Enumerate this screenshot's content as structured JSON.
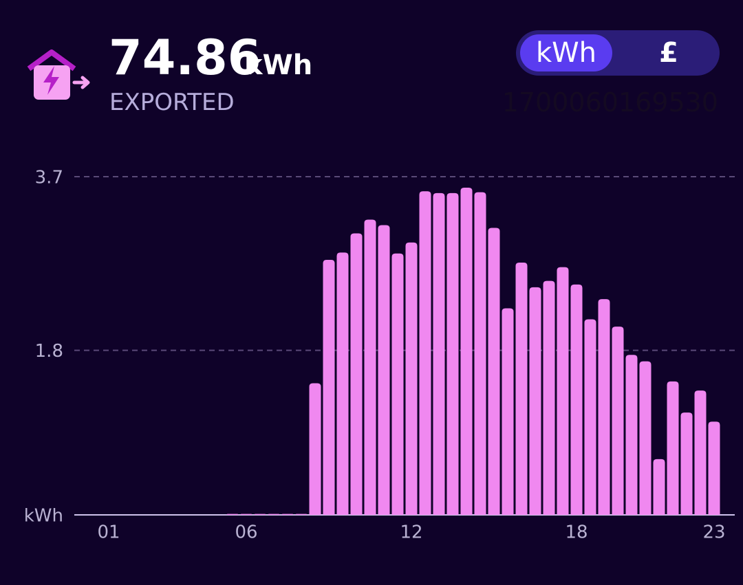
{
  "header": {
    "total": "74.86",
    "unit": "kWh",
    "label": "EXPORTED"
  },
  "toggle": {
    "options": [
      "kWh",
      "£"
    ],
    "active": 0
  },
  "meter_id": "1700060169530",
  "chart_data": {
    "type": "bar",
    "categories": [
      null,
      null,
      "01",
      null,
      null,
      null,
      null,
      null,
      null,
      null,
      null,
      null,
      "06",
      null,
      null,
      null,
      null,
      null,
      null,
      null,
      null,
      null,
      null,
      null,
      "12",
      null,
      null,
      null,
      null,
      null,
      null,
      null,
      null,
      null,
      null,
      null,
      "18",
      null,
      null,
      null,
      null,
      null,
      null,
      null,
      null,
      null,
      "23"
    ],
    "values": [
      0,
      0,
      0,
      0,
      0,
      0,
      0,
      0,
      0,
      0,
      0,
      0.01,
      0.01,
      0.01,
      0.01,
      0.01,
      0.01,
      1.44,
      2.79,
      2.87,
      3.08,
      3.23,
      3.17,
      2.86,
      2.98,
      3.54,
      3.52,
      3.52,
      3.58,
      3.53,
      3.14,
      2.26,
      2.76,
      2.49,
      2.56,
      2.71,
      2.52,
      2.14,
      2.36,
      2.06,
      1.75,
      1.68,
      0.61,
      1.46,
      1.12,
      1.36,
      1.02
    ],
    "color": "#f088f0",
    "ylim": [
      0,
      3.7
    ],
    "yticks": [
      {
        "value": 0,
        "label": "kWh"
      },
      1.8,
      3.7
    ],
    "grid": true
  }
}
